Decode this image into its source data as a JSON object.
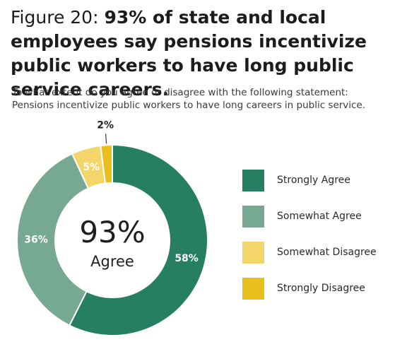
{
  "figure": {
    "label": "Figure 20: ",
    "headline": "93% of state and local employees say pensions incentivize public workers to have long public service careers."
  },
  "question": {
    "line1": "To what extent do you agree or disagree with the following statement:",
    "line2": "Pensions incentivize public workers to have long careers in public service."
  },
  "center": {
    "value": "93%",
    "label": "Agree"
  },
  "chart_data": {
    "type": "pie",
    "donut": true,
    "categories": [
      "Strongly Agree",
      "Somewhat Agree",
      "Somewhat Disagree",
      "Strongly Disagree"
    ],
    "values": [
      58,
      36,
      5,
      2
    ],
    "labels": [
      "58%",
      "36%",
      "5%",
      "2%"
    ],
    "colors": [
      "#267f63",
      "#77a892",
      "#f2d669",
      "#e9c01b"
    ],
    "legend_position": "right"
  }
}
